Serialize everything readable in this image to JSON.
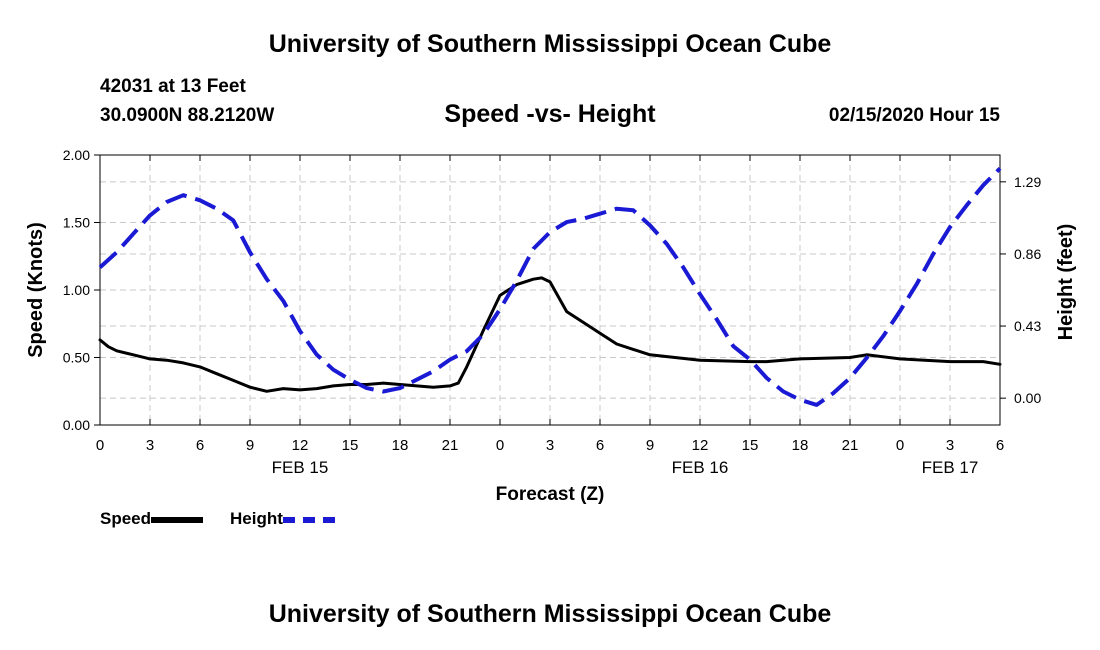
{
  "header": {
    "title": "University of Southern Mississippi Ocean Cube",
    "station": "42031 at 13 Feet",
    "coords": "30.0900N 88.2120W",
    "chart_title": "Speed -vs- Height",
    "date": "02/15/2020 Hour 15"
  },
  "footer": {
    "title": "University of Southern Mississippi Ocean Cube"
  },
  "legend": {
    "speed_label": "Speed",
    "height_label": "Height"
  },
  "colors": {
    "speed": "#000000",
    "height": "#1a1ad4",
    "grid": "#c8c8c8"
  },
  "chart_data": {
    "type": "line",
    "title": "Speed -vs- Height",
    "xlabel": "Forecast (Z)",
    "ylabel": "Speed (Knots)",
    "y2label": "Height (feet)",
    "xlim": [
      0,
      54
    ],
    "ylim": [
      0,
      2.0
    ],
    "y2lim": [
      -0.16,
      1.45
    ],
    "x_ticks": [
      0,
      3,
      6,
      9,
      12,
      15,
      18,
      21,
      24,
      27,
      30,
      33,
      36,
      39,
      42,
      45,
      48,
      51,
      54
    ],
    "x_tick_labels": [
      "0",
      "3",
      "6",
      "9",
      "12",
      "15",
      "18",
      "21",
      "0",
      "3",
      "6",
      "9",
      "12",
      "15",
      "18",
      "21",
      "0",
      "3",
      "6"
    ],
    "y_ticks": [
      0.0,
      0.5,
      1.0,
      1.5,
      2.0
    ],
    "y_tick_labels": [
      "0.00",
      "0.50",
      "1.00",
      "1.50",
      "2.00"
    ],
    "y2_ticks": [
      0.0,
      0.43,
      0.86,
      1.29
    ],
    "y2_tick_labels": [
      "0.00",
      "0.43",
      "0.86",
      "1.29"
    ],
    "day_labels": [
      {
        "x": 12,
        "label": "FEB 15"
      },
      {
        "x": 36,
        "label": "FEB 16"
      },
      {
        "x": 51,
        "label": "FEB 17"
      }
    ],
    "grid": true,
    "series": [
      {
        "name": "Speed",
        "axis": "left",
        "style": "solid",
        "x": [
          0,
          0.5,
          1,
          2,
          3,
          4,
          5,
          6,
          7,
          8,
          9,
          10,
          11,
          12,
          13,
          14,
          15,
          16,
          17,
          18,
          19,
          20,
          21,
          21.5,
          22,
          23,
          24,
          25,
          26,
          26.5,
          27,
          28,
          29,
          30,
          31,
          32,
          33,
          36,
          39,
          40,
          42,
          45,
          46,
          48,
          51,
          52,
          53,
          54
        ],
        "values": [
          0.63,
          0.58,
          0.55,
          0.52,
          0.49,
          0.48,
          0.46,
          0.43,
          0.38,
          0.33,
          0.28,
          0.25,
          0.27,
          0.26,
          0.27,
          0.29,
          0.3,
          0.3,
          0.31,
          0.3,
          0.29,
          0.28,
          0.29,
          0.31,
          0.43,
          0.7,
          0.96,
          1.04,
          1.08,
          1.09,
          1.06,
          0.84,
          0.76,
          0.68,
          0.6,
          0.56,
          0.52,
          0.48,
          0.47,
          0.47,
          0.49,
          0.5,
          0.52,
          0.49,
          0.47,
          0.47,
          0.47,
          0.45
        ]
      },
      {
        "name": "Height",
        "axis": "right",
        "style": "dashed",
        "x": [
          0,
          1,
          2,
          3,
          4,
          5,
          6,
          7,
          8,
          9,
          10,
          11,
          12,
          13,
          14,
          15,
          16,
          17,
          18,
          19,
          20,
          21,
          22,
          23,
          24,
          25,
          26,
          27,
          28,
          29,
          30,
          31,
          32,
          33,
          34,
          35,
          36,
          37,
          38,
          39,
          40,
          41,
          42,
          43,
          44,
          45,
          46,
          47,
          48,
          49,
          50,
          51,
          52,
          53,
          54
        ],
        "values": [
          0.78,
          0.87,
          0.98,
          1.09,
          1.17,
          1.21,
          1.18,
          1.13,
          1.06,
          0.87,
          0.71,
          0.58,
          0.4,
          0.26,
          0.17,
          0.11,
          0.06,
          0.04,
          0.06,
          0.11,
          0.16,
          0.23,
          0.28,
          0.38,
          0.53,
          0.7,
          0.89,
          0.99,
          1.05,
          1.07,
          1.1,
          1.13,
          1.12,
          1.03,
          0.92,
          0.78,
          0.62,
          0.47,
          0.31,
          0.23,
          0.12,
          0.04,
          -0.01,
          -0.04,
          0.03,
          0.12,
          0.24,
          0.37,
          0.52,
          0.68,
          0.86,
          1.02,
          1.15,
          1.27,
          1.37
        ]
      }
    ]
  }
}
